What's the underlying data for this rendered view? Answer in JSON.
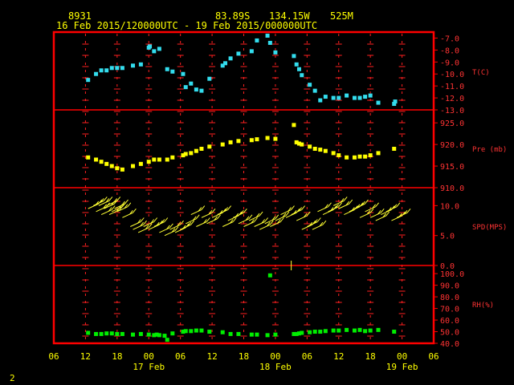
{
  "header": {
    "station": "8931",
    "lat": "83.89S",
    "lon": "134.15W",
    "elev": "525M",
    "range": "16 Feb 2015/120000UTC - 19 Feb 2015/000000UTC"
  },
  "page_number": "2",
  "colors": {
    "background": "#000000",
    "frame": "#ff0000",
    "grid": "#ff2020",
    "labels": "#ffff00",
    "panel_labels": "#ff3333",
    "temperature": "#33ddee",
    "pressure": "#ffff00",
    "wind": "#ffff33",
    "humidity": "#00ee00"
  },
  "chart_data": {
    "type": "scatter",
    "x_unit": "hours since 16 Feb 2015 06 UTC",
    "x_ticks": [
      "06",
      "12",
      "18",
      "00",
      "06",
      "12",
      "18",
      "00",
      "06",
      "12",
      "18",
      "00",
      "06"
    ],
    "x_tick_hours": [
      0,
      6,
      12,
      18,
      24,
      30,
      36,
      42,
      48,
      54,
      60,
      66,
      72
    ],
    "day_labels": [
      {
        "text": "17 Feb",
        "hour": 18
      },
      {
        "text": "18 Feb",
        "hour": 42
      },
      {
        "text": "19 Feb",
        "hour": 66
      }
    ],
    "panels": [
      {
        "id": "temperature",
        "label": "T(C)",
        "ylim": [
          -13,
          -6.5
        ],
        "yticks": [
          -7,
          -8,
          -9,
          -10,
          -11,
          -12,
          -13
        ],
        "ytick_labels": [
          "-7.0",
          "-8.0",
          "-9.0",
          "-10.0",
          "-11.0",
          "-12.0",
          "-13.0"
        ],
        "x": [
          6.5,
          8,
          9,
          10,
          11,
          12,
          13,
          15,
          16.5,
          18,
          18.2,
          19,
          20,
          21.5,
          22.5,
          24.5,
          25,
          26,
          27,
          28,
          29.5,
          32,
          32.5,
          33.5,
          35,
          37.5,
          38.5,
          40.5,
          41,
          42,
          45.5,
          46,
          46.5,
          47,
          48.5,
          49.5,
          50.5,
          51.5,
          53,
          54,
          55.5,
          57,
          58,
          59,
          60,
          61.5,
          64.5,
          64.7
        ],
        "y": [
          -10.5,
          -10,
          -9.7,
          -9.7,
          -9.5,
          -9.5,
          -9.5,
          -9.3,
          -9.2,
          -7.8,
          -7.7,
          -8.1,
          -7.9,
          -9.6,
          -9.8,
          -10,
          -11.1,
          -10.8,
          -11.3,
          -11.4,
          -10.4,
          -9.3,
          -9.1,
          -8.7,
          -8.3,
          -8.1,
          -7.2,
          -6.8,
          -7.4,
          -8.2,
          -8.5,
          -9.2,
          -9.6,
          -10.1,
          -10.9,
          -11.4,
          -12.2,
          -11.9,
          -12,
          -12,
          -11.8,
          -12,
          -12,
          -11.9,
          -11.8,
          -12.4,
          -12.5,
          -12.3
        ]
      },
      {
        "id": "pressure",
        "label": "Pre (mb)",
        "ylim": [
          910,
          928
        ],
        "yticks": [
          910,
          915,
          920,
          925
        ],
        "ytick_labels": [
          "910.0",
          "915.0",
          "920.0",
          "925.0"
        ],
        "x": [
          6.5,
          8,
          9,
          10,
          11,
          12,
          13,
          15,
          16.5,
          18,
          19,
          20,
          21.5,
          22.5,
          24.5,
          25,
          26,
          27,
          28,
          29.5,
          32,
          33.5,
          35,
          37.5,
          38.5,
          40.5,
          42,
          45.5,
          46,
          46.5,
          47,
          48.5,
          49.5,
          50.5,
          51.5,
          53,
          54,
          55.5,
          57,
          58,
          59,
          60,
          61.5,
          64.5
        ],
        "y": [
          917,
          916.5,
          916,
          915.5,
          915,
          914.5,
          914.2,
          915,
          915.5,
          916,
          916.5,
          916.5,
          916.5,
          917,
          917.5,
          917.8,
          918,
          918.5,
          919,
          919.5,
          920,
          920.5,
          920.8,
          921,
          921.2,
          921.5,
          921.3,
          924.5,
          920.5,
          920.2,
          920,
          919.5,
          919,
          918.8,
          918.5,
          918,
          917.5,
          917,
          917,
          917.2,
          917.2,
          917.5,
          918,
          919
        ]
      },
      {
        "id": "wind",
        "label": "SPD(MPS)",
        "ylim": [
          0,
          13
        ],
        "yticks": [
          0,
          5,
          10
        ],
        "ytick_labels": [
          "0.0",
          "5.0",
          "10.0"
        ],
        "x": [
          6.5,
          7.5,
          8,
          8.5,
          9,
          9.5,
          10,
          10.5,
          11,
          11.5,
          12,
          13,
          14.5,
          15,
          16,
          17,
          18,
          19,
          20,
          21,
          22,
          23,
          24,
          25,
          26,
          27,
          28,
          29,
          30,
          31,
          32,
          33,
          34,
          35,
          36,
          37,
          38,
          39,
          40,
          41,
          42,
          43,
          44,
          45,
          46,
          47,
          48,
          49,
          50,
          51,
          52,
          53,
          54,
          55,
          56,
          57,
          58,
          59,
          60,
          61,
          62,
          63,
          64,
          65
        ],
        "y": [
          9.5,
          10,
          9,
          10,
          8.5,
          9.5,
          10,
          8.5,
          9,
          9.5,
          9,
          8,
          6.5,
          6,
          5.5,
          6.5,
          6,
          6.5,
          5.5,
          5,
          6,
          5.5,
          6,
          7,
          8.5,
          6.5,
          8,
          7,
          8,
          8.5,
          6.5,
          7.5,
          8,
          7,
          6.5,
          7.5,
          6.5,
          6,
          7,
          6.5,
          7.5,
          8.5,
          8,
          8.5,
          7.5,
          6,
          6.5,
          6,
          9,
          8.5,
          9,
          10,
          9.5,
          8.5,
          9,
          9.5,
          8,
          9,
          8,
          7.5,
          8.5,
          9,
          7.5,
          8
        ]
      },
      {
        "id": "humidity",
        "label": "RH(%)",
        "ylim": [
          40,
          107
        ],
        "yticks": [
          40,
          50,
          60,
          70,
          80,
          90,
          100
        ],
        "ytick_labels": [
          "40.0",
          "50.0",
          "60.0",
          "70.0",
          "80.0",
          "90.0",
          "100.0"
        ],
        "x": [
          6.5,
          8,
          9,
          10,
          11,
          12,
          13,
          15,
          16.5,
          18,
          19,
          19.5,
          20,
          21,
          21.5,
          22.5,
          24.5,
          25,
          26,
          27,
          28,
          29.5,
          32,
          33.5,
          35,
          37.5,
          38.5,
          40.5,
          41,
          42,
          45.5,
          46,
          46.5,
          47,
          48.5,
          49.5,
          50.5,
          51.5,
          53,
          54,
          55.5,
          57,
          58,
          59,
          60,
          61.5,
          64.5
        ],
        "y": [
          49,
          48,
          48,
          48.5,
          48.5,
          48,
          48,
          47.5,
          48,
          47.5,
          47,
          47.5,
          47,
          46.5,
          43,
          48.5,
          50,
          50.5,
          50.5,
          51,
          51,
          50,
          49.5,
          48,
          48,
          47.5,
          47.5,
          47,
          98.5,
          47.5,
          48,
          48,
          48.5,
          49,
          49.5,
          50,
          50,
          50.5,
          51,
          51,
          51.5,
          51,
          51.5,
          50.5,
          51,
          51.5,
          50
        ]
      }
    ]
  }
}
